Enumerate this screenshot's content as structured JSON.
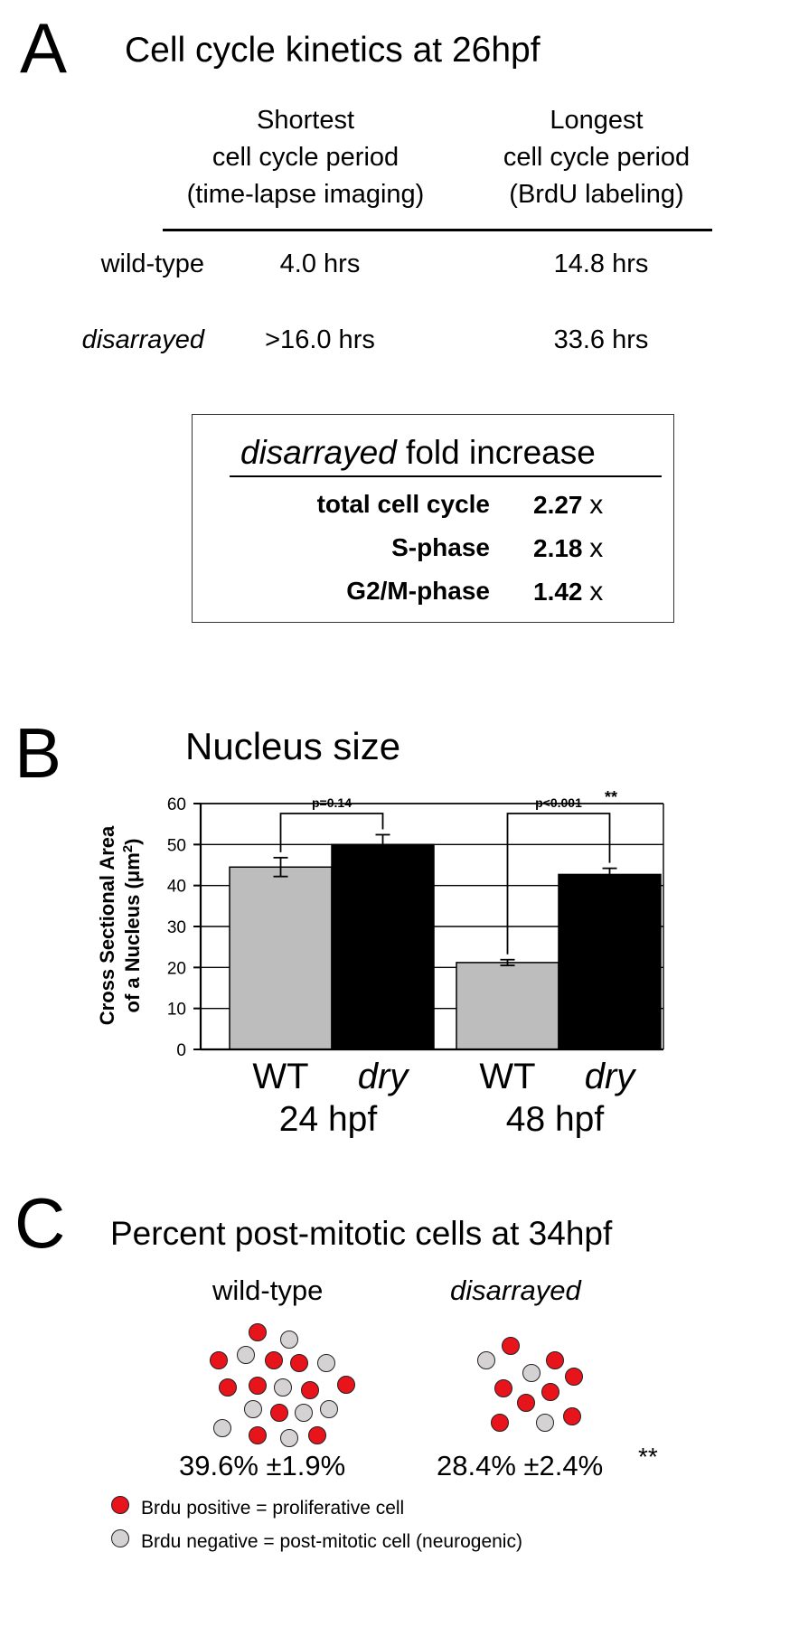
{
  "panel_a": {
    "letter": "A",
    "title": "Cell cycle kinetics at 26hpf",
    "col1_header": [
      "Shortest",
      "cell cycle period",
      "(time-lapse imaging)"
    ],
    "col2_header": [
      "Longest",
      "cell cycle period",
      "(BrdU labeling)"
    ],
    "rows": [
      {
        "label": "wild-type",
        "shortest": "4.0 hrs",
        "longest": "14.8 hrs"
      },
      {
        "label": "disarrayed",
        "shortest": ">16.0 hrs",
        "longest": "33.6 hrs"
      }
    ],
    "fold": {
      "title_italic": "disarrayed",
      "title_rest": "fold increase",
      "items": [
        {
          "label": "total cell cycle",
          "value": "2.27",
          "unit": "x"
        },
        {
          "label": "S-phase",
          "value": "2.18",
          "unit": "x"
        },
        {
          "label": "G2/M-phase",
          "value": "1.42",
          "unit": "x"
        }
      ]
    }
  },
  "panel_b": {
    "letter": "B",
    "title": "Nucleus size",
    "chart_data": {
      "type": "bar",
      "title": "Nucleus size",
      "ylabel": "Cross Sectional Area of a Nucleus (μm²)",
      "ylabel_line1": "Cross Sectional Area",
      "ylabel_line2_pre": "of a Nucleus (μm",
      "ylabel_sup": "2",
      "ylabel_line2_post": ")",
      "ylim": [
        0,
        60
      ],
      "yticks": [
        "0",
        "10",
        "20",
        "30",
        "40",
        "50",
        "60"
      ],
      "grid": true,
      "groups": [
        {
          "name": "24 hpf",
          "bars": [
            {
              "label": "WT",
              "value": 44.5,
              "error": 2.3,
              "color": "#bdbdbd"
            },
            {
              "label": "dry",
              "value": 50.0,
              "error": 2.4,
              "color": "#000000"
            }
          ],
          "annotation": "p=0.14",
          "stars": ""
        },
        {
          "name": "48 hpf",
          "bars": [
            {
              "label": "WT",
              "value": 21.2,
              "error": 0.7,
              "color": "#bdbdbd"
            },
            {
              "label": "dry",
              "value": 42.7,
              "error": 1.5,
              "color": "#000000"
            }
          ],
          "annotation": "p<0.001",
          "stars": "**"
        }
      ]
    }
  },
  "panel_c": {
    "letter": "C",
    "title": "Percent post-mitotic cells at 34hpf",
    "wt_label": "wild-type",
    "dis_label": "disarrayed",
    "wt_value": "39.6% ±1.9%",
    "dis_value": "28.4% ±2.4%",
    "dis_stars": "**",
    "legend": [
      {
        "color": "#e8141b",
        "text": "Brdu positive = proliferative cell"
      },
      {
        "color": "#d4d2d2",
        "text": "Brdu negative = post-mitotic cell (neurogenic)"
      }
    ]
  }
}
